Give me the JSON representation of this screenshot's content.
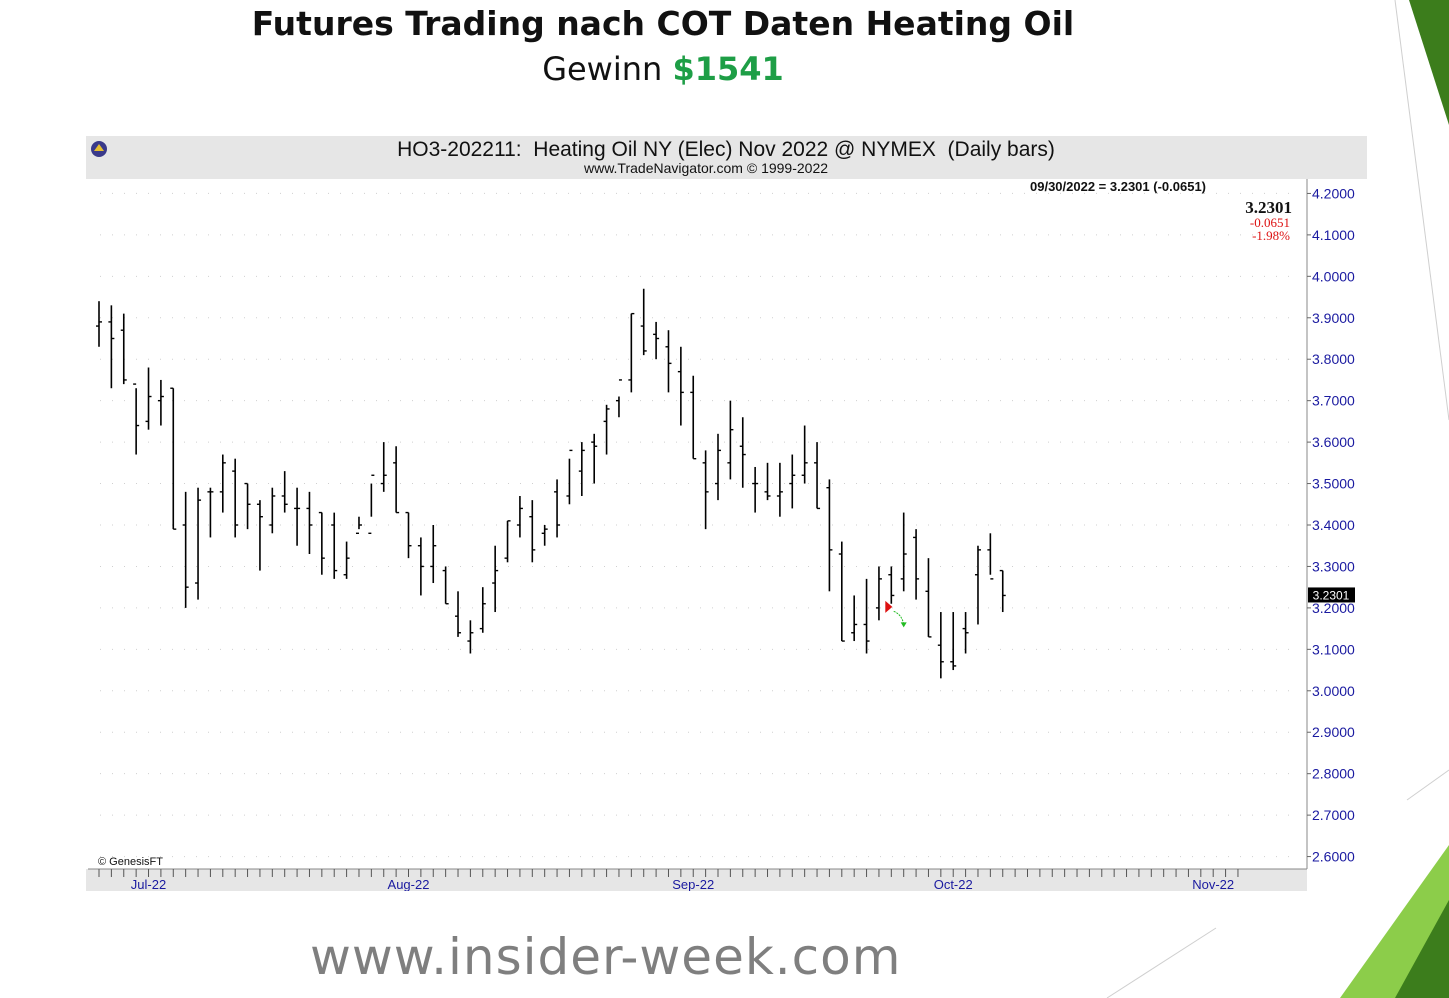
{
  "slide": {
    "title": "Futures Trading nach COT Daten Heating Oil",
    "subtitle_prefix": "Gewinn",
    "profit": "$1541",
    "website": "www.insider-week.com"
  },
  "colors": {
    "profit": "#1e9e46",
    "header_bg": "#e6e6e6",
    "axis_label": "#1a1aa0",
    "change_red": "#dd1111",
    "deco_green_dark": "#3c7d1c",
    "deco_green_light": "#8ccd4a"
  },
  "chart_data": {
    "type": "ohlc",
    "title": "HO3-202211:  Heating Oil NY (Elec) Nov 2022 @ NYMEX  (Daily bars)",
    "subtitle": "www.TradeNavigator.com © 1999-2022",
    "summary": "09/30/2022 = 3.2301 (-0.0651)",
    "last_price": "3.2301",
    "change": "-0.0651",
    "change_pct": "-1.98%",
    "price_tag": "3.2301",
    "credit": "© GenesisFT",
    "ylim": [
      2.57,
      4.23
    ],
    "y_ticks": [
      {
        "v": 4.2,
        "label": "4.2000"
      },
      {
        "v": 4.1,
        "label": "4.1000"
      },
      {
        "v": 4.0,
        "label": "4.0000"
      },
      {
        "v": 3.9,
        "label": "3.9000"
      },
      {
        "v": 3.8,
        "label": "3.8000"
      },
      {
        "v": 3.7,
        "label": "3.7000"
      },
      {
        "v": 3.6,
        "label": "3.6000"
      },
      {
        "v": 3.5,
        "label": "3.5000"
      },
      {
        "v": 3.4,
        "label": "3.4000"
      },
      {
        "v": 3.3,
        "label": "3.3000"
      },
      {
        "v": 3.2,
        "label": "3.2000"
      },
      {
        "v": 3.1,
        "label": "3.1000"
      },
      {
        "v": 3.0,
        "label": "3.0000"
      },
      {
        "v": 2.9,
        "label": "2.9000"
      },
      {
        "v": 2.8,
        "label": "2.8000"
      },
      {
        "v": 2.7,
        "label": "2.7000"
      },
      {
        "v": 2.6,
        "label": "2.6000"
      }
    ],
    "x_labels": [
      {
        "index": 4,
        "label": "Jul-22"
      },
      {
        "index": 25,
        "label": "Aug-22"
      },
      {
        "index": 48,
        "label": "Sep-22"
      },
      {
        "index": 69,
        "label": "Oct-22"
      },
      {
        "index": 90,
        "label": "Nov-22"
      }
    ],
    "bars": [
      [
        3.88,
        3.94,
        3.83,
        3.89
      ],
      [
        3.89,
        3.93,
        3.73,
        3.85
      ],
      [
        3.87,
        3.91,
        3.74,
        3.75
      ],
      [
        3.74,
        3.73,
        3.57,
        3.64
      ],
      [
        3.65,
        3.78,
        3.63,
        3.71
      ],
      [
        3.7,
        3.75,
        3.64,
        3.71
      ],
      [
        3.73,
        3.73,
        3.39,
        3.39
      ],
      [
        3.4,
        3.48,
        3.2,
        3.25
      ],
      [
        3.26,
        3.49,
        3.22,
        3.46
      ],
      [
        3.48,
        3.49,
        3.37,
        3.48
      ],
      [
        3.48,
        3.57,
        3.43,
        3.55
      ],
      [
        3.53,
        3.56,
        3.37,
        3.4
      ],
      [
        3.5,
        3.5,
        3.39,
        3.45
      ],
      [
        3.45,
        3.46,
        3.29,
        3.42
      ],
      [
        3.4,
        3.49,
        3.38,
        3.47
      ],
      [
        3.47,
        3.53,
        3.43,
        3.45
      ],
      [
        3.44,
        3.49,
        3.35,
        3.44
      ],
      [
        3.44,
        3.48,
        3.33,
        3.4
      ],
      [
        3.43,
        3.43,
        3.28,
        3.32
      ],
      [
        3.4,
        3.43,
        3.27,
        3.29
      ],
      [
        3.28,
        3.36,
        3.27,
        3.32
      ],
      [
        3.38,
        3.42,
        3.39,
        3.4
      ],
      [
        3.38,
        3.5,
        3.42,
        3.52
      ],
      [
        3.5,
        3.6,
        3.48,
        3.52
      ],
      [
        3.55,
        3.59,
        3.43,
        3.43
      ],
      [
        3.43,
        3.43,
        3.32,
        3.35
      ],
      [
        3.35,
        3.37,
        3.23,
        3.3
      ],
      [
        3.3,
        3.4,
        3.26,
        3.35
      ],
      [
        3.29,
        3.3,
        3.21,
        3.21
      ],
      [
        3.18,
        3.24,
        3.13,
        3.14
      ],
      [
        3.12,
        3.17,
        3.09,
        3.14
      ],
      [
        3.15,
        3.25,
        3.14,
        3.21
      ],
      [
        3.26,
        3.35,
        3.19,
        3.29
      ],
      [
        3.32,
        3.41,
        3.31,
        3.41
      ],
      [
        3.4,
        3.47,
        3.37,
        3.44
      ],
      [
        3.42,
        3.46,
        3.31,
        3.34
      ],
      [
        3.38,
        3.4,
        3.35,
        3.39
      ],
      [
        3.48,
        3.51,
        3.37,
        3.4
      ],
      [
        3.47,
        3.56,
        3.45,
        3.58
      ],
      [
        3.53,
        3.6,
        3.47,
        3.58
      ],
      [
        3.6,
        3.62,
        3.5,
        3.59
      ],
      [
        3.65,
        3.69,
        3.57,
        3.68
      ],
      [
        3.7,
        3.71,
        3.66,
        3.75
      ],
      [
        3.75,
        3.91,
        3.72,
        3.91
      ],
      [
        3.88,
        3.97,
        3.81,
        3.82
      ],
      [
        3.86,
        3.89,
        3.8,
        3.85
      ],
      [
        3.83,
        3.87,
        3.72,
        3.79
      ],
      [
        3.77,
        3.83,
        3.64,
        3.72
      ],
      [
        3.72,
        3.76,
        3.56,
        3.56
      ],
      [
        3.55,
        3.58,
        3.39,
        3.48
      ],
      [
        3.5,
        3.62,
        3.46,
        3.58
      ],
      [
        3.55,
        3.7,
        3.51,
        3.63
      ],
      [
        3.59,
        3.66,
        3.49,
        3.57
      ],
      [
        3.5,
        3.54,
        3.43,
        3.5
      ],
      [
        3.48,
        3.55,
        3.46,
        3.47
      ],
      [
        3.47,
        3.55,
        3.42,
        3.48
      ],
      [
        3.5,
        3.57,
        3.44,
        3.52
      ],
      [
        3.52,
        3.64,
        3.5,
        3.55
      ],
      [
        3.55,
        3.6,
        3.44,
        3.44
      ],
      [
        3.49,
        3.51,
        3.24,
        3.34
      ],
      [
        3.33,
        3.36,
        3.12,
        3.12
      ],
      [
        3.14,
        3.23,
        3.12,
        3.16
      ],
      [
        3.16,
        3.27,
        3.09,
        3.12
      ],
      [
        3.2,
        3.3,
        3.17,
        3.27
      ],
      [
        3.28,
        3.3,
        3.21,
        3.23
      ],
      [
        3.27,
        3.43,
        3.24,
        3.33
      ],
      [
        3.37,
        3.39,
        3.22,
        3.27
      ],
      [
        3.24,
        3.32,
        3.13,
        3.13
      ],
      [
        3.11,
        3.19,
        3.03,
        3.07
      ],
      [
        3.07,
        3.19,
        3.05,
        3.06
      ],
      [
        3.15,
        3.19,
        3.09,
        3.14
      ],
      [
        3.28,
        3.35,
        3.16,
        3.34
      ],
      [
        3.34,
        3.38,
        3.28,
        3.27
      ],
      [
        3.29,
        3.29,
        3.19,
        3.23
      ]
    ],
    "markers": [
      {
        "type": "sell-arrow",
        "index": 64,
        "price": 3.2,
        "color": "#dd1111"
      },
      {
        "type": "exit-arrow",
        "index": 65,
        "price": 3.17,
        "color": "#22bb22"
      }
    ]
  }
}
